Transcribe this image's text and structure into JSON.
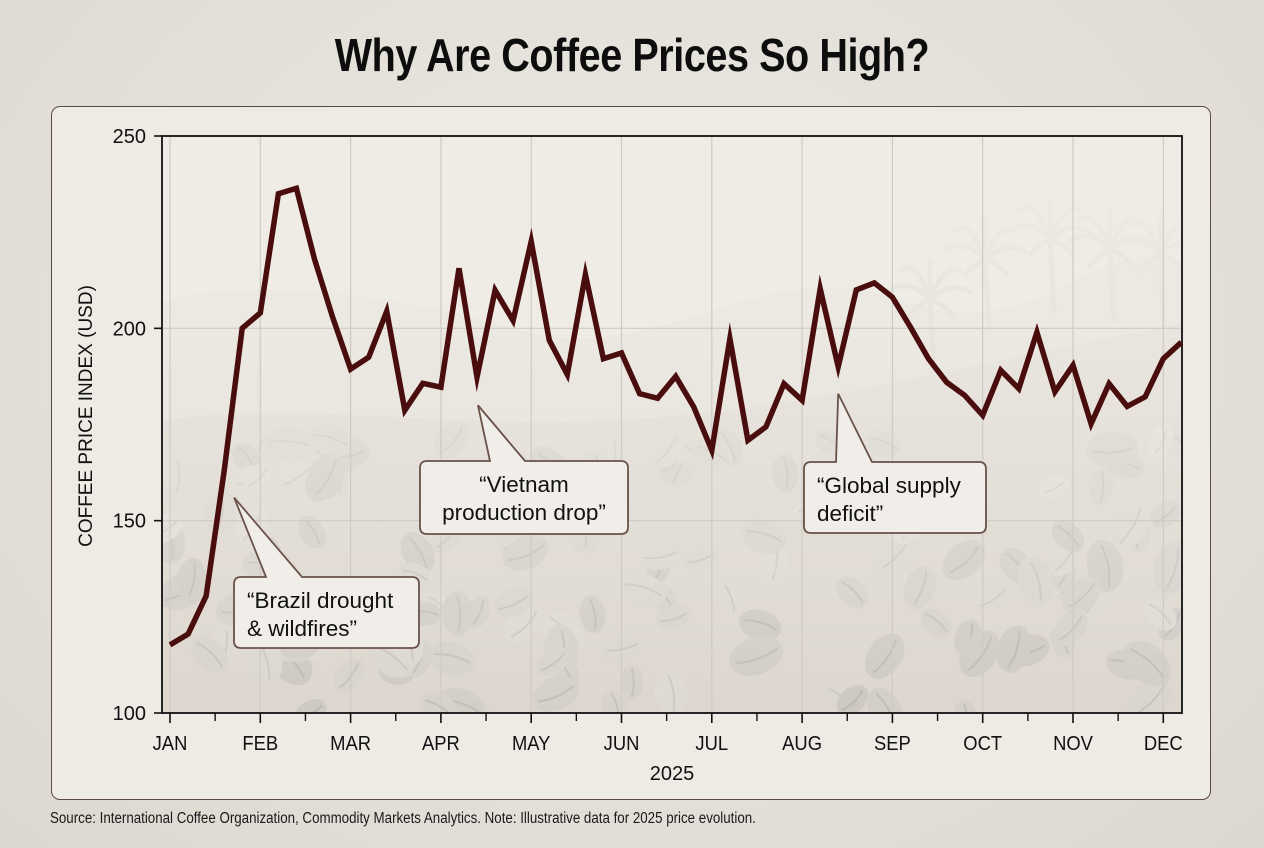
{
  "title": "Why Are Coffee Prices So High?",
  "source": "Source: International Coffee Organization, Commodity Markets Analytics. Note: Illustrative data for 2025 price evolution.",
  "colors": {
    "line": "#4a0d0d",
    "panel_border": "#5b4a42",
    "callout_border": "#6a5248",
    "grid": "#cfcac3",
    "axis": "#111111"
  },
  "chart_data": {
    "type": "line",
    "title": "Why Are Coffee Prices So High?",
    "xlabel": "2025",
    "ylabel": "COFFEE PRICE INDEX (USD)",
    "ylim": [
      100,
      250
    ],
    "yticks": [
      100,
      150,
      200,
      250
    ],
    "grid": true,
    "x_unit": "month index (0 = JAN, 11 = DEC); ~5 points per month",
    "xlim": [
      -0.09,
      11.21
    ],
    "xtick_labels": [
      "JAN",
      "FEB",
      "MAR",
      "APR",
      "MAY",
      "JUN",
      "JUL",
      "AUG",
      "SEP",
      "OCT",
      "NOV",
      "DEC"
    ],
    "series": [
      {
        "name": "Coffee Price Index",
        "x": [
          0.0,
          0.2,
          0.4,
          0.6,
          0.8,
          1.0,
          1.2,
          1.4,
          1.6,
          1.8,
          2.0,
          2.2,
          2.4,
          2.6,
          2.8,
          3.0,
          3.2,
          3.4,
          3.6,
          3.8,
          4.0,
          4.2,
          4.4,
          4.6,
          4.8,
          5.0,
          5.2,
          5.4,
          5.6,
          5.8,
          6.0,
          6.2,
          6.4,
          6.6,
          6.8,
          7.0,
          7.2,
          7.4,
          7.6,
          7.8,
          8.0,
          8.2,
          8.4,
          8.6,
          8.8,
          9.0,
          9.2,
          9.4,
          9.6,
          9.8,
          10.0,
          10.2,
          10.4,
          10.6,
          10.8,
          11.0,
          11.2
        ],
        "values": [
          117.7,
          120.5,
          130.4,
          163.0,
          200.0,
          204.0,
          235.0,
          236.4,
          218.0,
          203.0,
          189.4,
          192.5,
          204.4,
          178.7,
          185.7,
          184.7,
          215.6,
          187.3,
          209.9,
          202.0,
          222.6,
          196.9,
          188.0,
          214.0,
          192.1,
          193.6,
          183.0,
          181.8,
          187.5,
          179.6,
          168.3,
          197.3,
          170.9,
          174.4,
          185.6,
          181.3,
          210.3,
          190.0,
          210.0,
          211.8,
          208.1,
          200.3,
          192.1,
          186.0,
          182.6,
          177.4,
          189.1,
          184.3,
          199.0,
          183.5,
          190.4,
          175.2,
          185.6,
          179.7,
          182.2,
          192.1,
          196.4
        ]
      }
    ],
    "annotations": [
      {
        "text_line1": "“Brazil drought",
        "text_line2": "& wildfires”",
        "points_to_x": 0.71,
        "points_to_y": 156
      },
      {
        "text_line1": "“Vietnam",
        "text_line2": "production drop”",
        "points_to_x": 3.41,
        "points_to_y": 180
      },
      {
        "text_line1": "“Global supply",
        "text_line2": "deficit”",
        "points_to_x": 7.4,
        "points_to_y": 183
      }
    ]
  }
}
